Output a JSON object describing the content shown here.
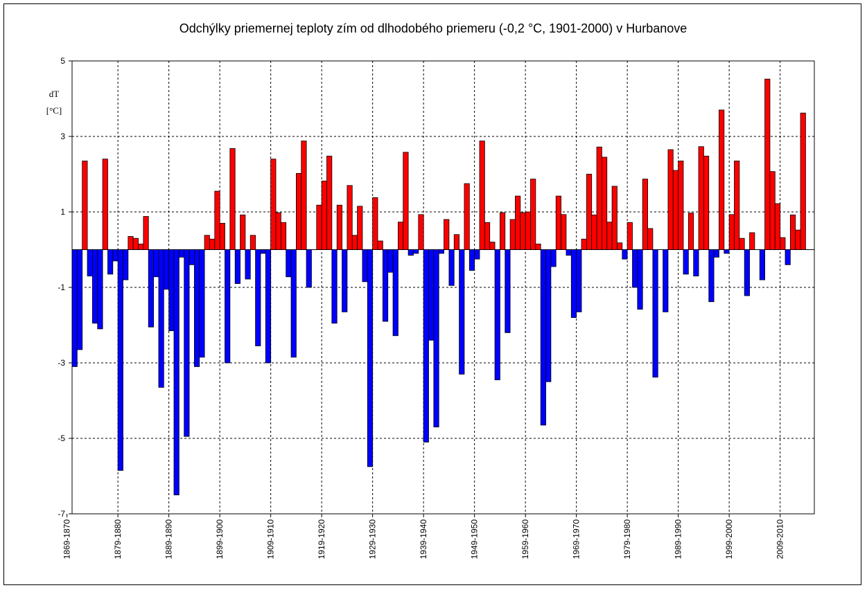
{
  "chart_data": {
    "type": "bar",
    "title": "Odchýlky priemernej teploty zím od dlhodobého priemeru (-0,2 °C, 1901-2000) v Hurbanove",
    "ylabel_line1": "dT",
    "ylabel_line2": "[°C]",
    "ylim": [
      -7,
      5
    ],
    "yticks": [
      5,
      3,
      1,
      -1,
      -3,
      -5,
      -7
    ],
    "grid": true,
    "first_winter_start_year": 1871,
    "xtick_labels": [
      "1869-1870",
      "1879-1880",
      "1889-1890",
      "1899-1900",
      "1909-1910",
      "1919-1920",
      "1929-1930",
      "1939-1940",
      "1949-1950",
      "1959-1960",
      "1969-1970",
      "1979-1980",
      "1989-1990",
      "1999-2000",
      "2009-2010"
    ],
    "positive_color": "#ff0000",
    "negative_color": "#0000ff",
    "values": [
      -3.1,
      -2.65,
      2.35,
      -0.7,
      -1.95,
      -2.1,
      2.4,
      -0.65,
      -0.3,
      -5.85,
      -0.8,
      0.35,
      0.3,
      0.15,
      0.88,
      -2.05,
      -0.72,
      -3.65,
      -1.05,
      -2.15,
      -6.5,
      -0.2,
      -4.95,
      -0.4,
      -3.1,
      -2.85,
      0.38,
      0.28,
      1.55,
      0.7,
      -3.0,
      2.68,
      -0.9,
      0.92,
      -0.78,
      0.38,
      -2.55,
      -0.1,
      -3.0,
      2.4,
      0.98,
      0.72,
      -0.72,
      -2.85,
      2.02,
      2.88,
      -1.0,
      0.0,
      1.18,
      1.82,
      2.48,
      -1.95,
      1.18,
      -1.65,
      1.7,
      0.38,
      1.15,
      -0.85,
      -5.75,
      1.38,
      0.23,
      -1.9,
      -0.6,
      -2.28,
      0.73,
      2.58,
      -0.15,
      -0.1,
      0.93,
      -5.1,
      -2.4,
      -4.7,
      -0.1,
      0.8,
      -0.95,
      0.4,
      -3.3,
      1.75,
      -0.55,
      -0.25,
      2.88,
      0.72,
      0.2,
      -3.45,
      0.98,
      -2.2,
      0.8,
      1.42,
      0.98,
      1.0,
      1.87,
      0.15,
      -4.65,
      -3.5,
      -0.45,
      1.42,
      0.93,
      -0.15,
      -1.8,
      -1.65,
      0.28,
      2.0,
      0.92,
      2.72,
      2.45,
      0.73,
      1.68,
      0.18,
      -0.25,
      0.72,
      -1.0,
      -1.58,
      1.87,
      0.56,
      -3.38,
      0.0,
      -1.65,
      2.65,
      2.1,
      2.35,
      -0.65,
      0.97,
      -0.7,
      2.73,
      2.48,
      -1.38,
      -0.2,
      3.7,
      -0.1,
      0.93,
      2.35,
      0.3,
      -1.22,
      0.45,
      0.0,
      -0.8,
      4.52,
      2.07,
      1.22,
      0.32,
      -0.4,
      0.92,
      0.52,
      3.62
    ]
  }
}
